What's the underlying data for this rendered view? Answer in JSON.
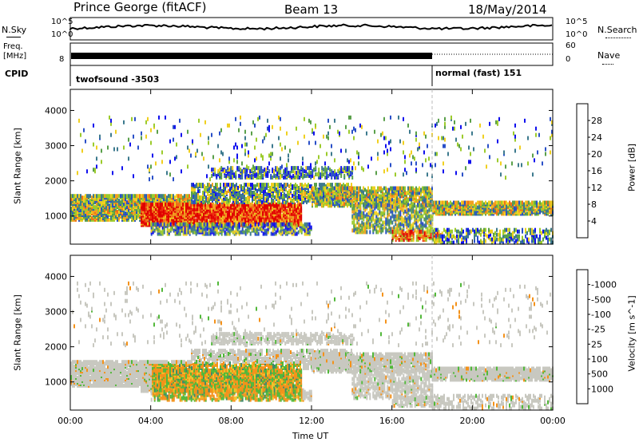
{
  "header": {
    "station": "Prince George (fitACF)",
    "beam": "Beam 13",
    "date": "18/May/2014"
  },
  "top_panels": {
    "nsky_label": "N.Sky",
    "nsearch_label": "N.Search",
    "nsky_ticks": [
      "10^5",
      "10^0"
    ],
    "nsearch_ticks": [
      "10^5",
      "10^0"
    ],
    "freq_label": "Freq.",
    "freq_unit": "[MHz]",
    "freq_ticks": [
      "",
      "8"
    ],
    "nave_ticks": [
      "60",
      "0"
    ],
    "nave_label": "Nave",
    "cpid_label": "CPID",
    "cpid_segments": [
      {
        "label": "twofsound -3503",
        "start_hour": 0,
        "end_hour": 18
      },
      {
        "label": "normal (fast) 151",
        "start_hour": 18,
        "end_hour": 24
      }
    ]
  },
  "chart_data": [
    {
      "type": "heatmap",
      "name": "power",
      "ylabel": "Slant Range [km]",
      "xlabel": "Time UT",
      "yticks": [
        1000,
        2000,
        3000,
        4000
      ],
      "ylim": [
        200,
        4600
      ],
      "xlim_hours": [
        0,
        24
      ],
      "colorbar_label": "Power [dB]",
      "colorbar_ticks": [
        "4",
        "8",
        "12",
        "16",
        "20",
        "24",
        "28"
      ],
      "colorbar_colors": [
        "#1010ee",
        "#2a50c8",
        "#3d7a8e",
        "#5aa04a",
        "#9ccb2c",
        "#f0d020",
        "#f0a020",
        "#f07018",
        "#ee3010",
        "#e00000"
      ]
    },
    {
      "type": "heatmap",
      "name": "velocity",
      "ylabel": "Slant Range [km]",
      "xlabel": "Time UT",
      "yticks": [
        1000,
        2000,
        3000,
        4000
      ],
      "ylim": [
        200,
        4600
      ],
      "xlim_hours": [
        0,
        24
      ],
      "colorbar_label": "Velocity [m s^-1]",
      "colorbar_ticks": [
        "1000",
        "500",
        "100",
        "25",
        "-25",
        "-100",
        "-500",
        "-1000"
      ],
      "colorbar_colors": [
        "#1a3fc8",
        "#2b6aa8",
        "#3f8a6a",
        "#52b83a",
        "#c8c8c0",
        "#c8c8c0",
        "#f4c22a",
        "#f4921a",
        "#ee5a10",
        "#e00000"
      ]
    }
  ],
  "time_axis": {
    "label": "Time UT",
    "ticks": [
      "00:00",
      "04:00",
      "08:00",
      "12:00",
      "16:00",
      "20:00",
      "00:00"
    ]
  }
}
